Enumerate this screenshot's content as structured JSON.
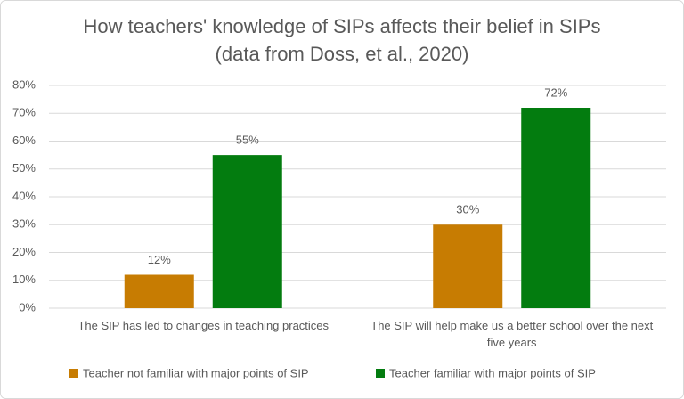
{
  "chart_data": {
    "type": "bar",
    "title": [
      "How teachers' knowledge of SIPs affects their belief in SIPs",
      "(data from Doss, et al., 2020)"
    ],
    "categories": [
      "The SIP has led to changes in teaching practices",
      "The SIP will help make us a better school over the next five years"
    ],
    "series": [
      {
        "name": "Teacher not familiar with major points of SIP",
        "color": "#c77c02",
        "values": [
          12,
          30
        ],
        "value_labels": [
          "12%",
          "30%"
        ]
      },
      {
        "name": "Teacher familiar with major points of SIP",
        "color": "#037c0f",
        "values": [
          55,
          72
        ],
        "value_labels": [
          "55%",
          "72%"
        ]
      }
    ],
    "ylim": [
      0,
      80
    ],
    "yticks": [
      {
        "value": 0,
        "label": "0%"
      },
      {
        "value": 10,
        "label": "10%"
      },
      {
        "value": 20,
        "label": "20%"
      },
      {
        "value": 30,
        "label": "30%"
      },
      {
        "value": 40,
        "label": "40%"
      },
      {
        "value": 50,
        "label": "50%"
      },
      {
        "value": 60,
        "label": "60%"
      },
      {
        "value": 70,
        "label": "70%"
      },
      {
        "value": 80,
        "label": "80%"
      }
    ],
    "grid": true,
    "legend": "bottom"
  }
}
